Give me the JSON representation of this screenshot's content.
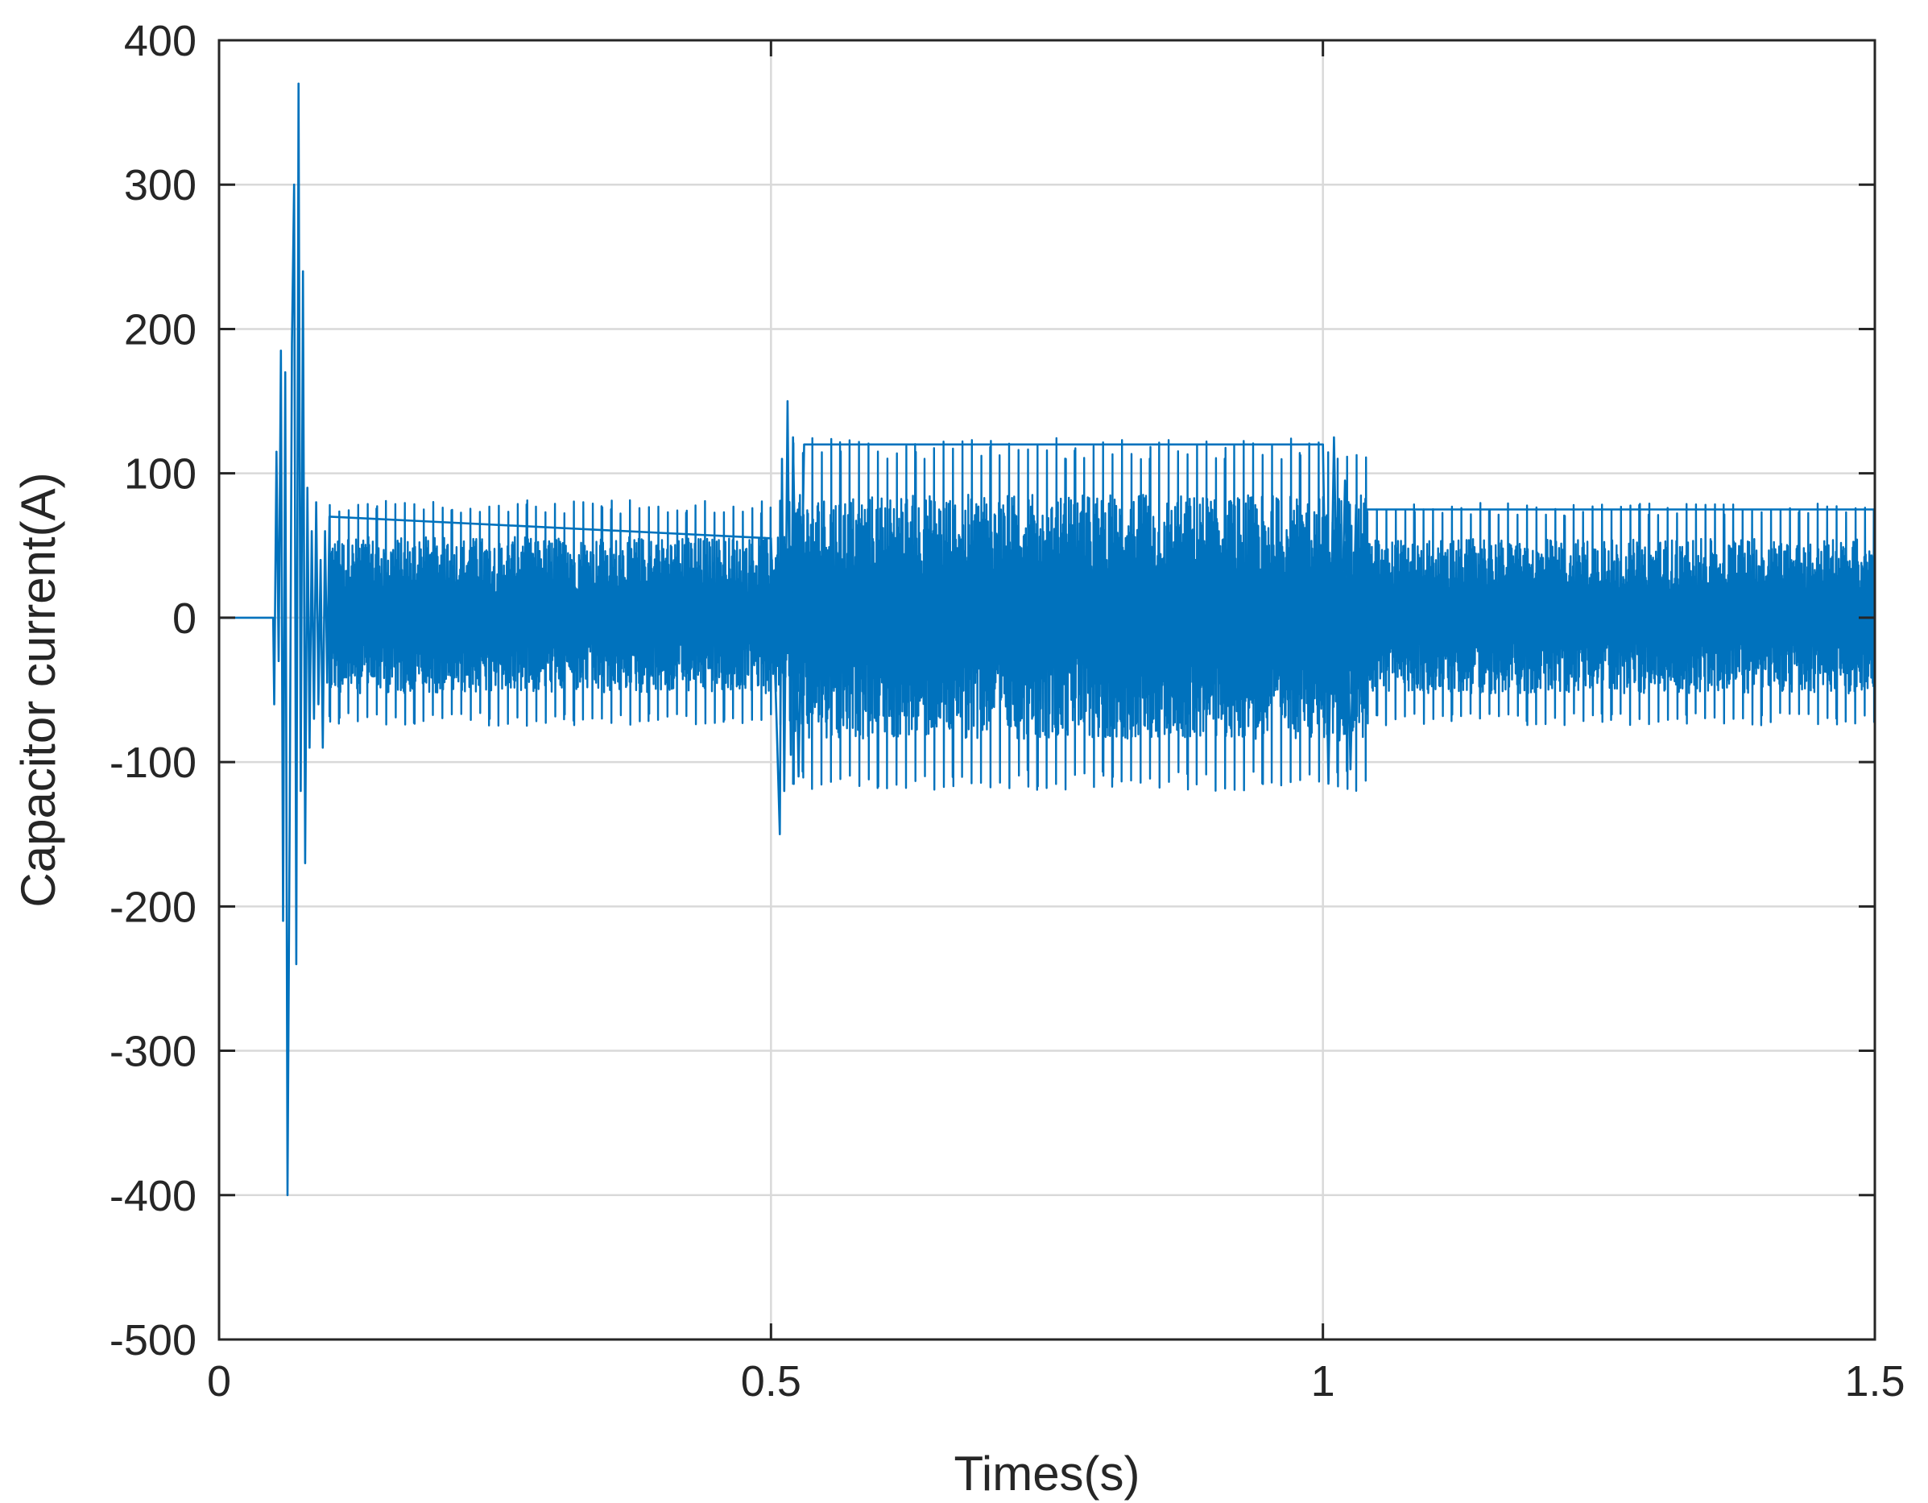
{
  "chart_data": {
    "type": "line",
    "xlabel": "Times(s)",
    "ylabel": "Capacitor current(A)",
    "xlim": [
      0,
      1.5
    ],
    "ylim": [
      -500,
      400
    ],
    "xticks": [
      {
        "value": 0,
        "label": "0"
      },
      {
        "value": 0.5,
        "label": "0.5"
      },
      {
        "value": 1,
        "label": "1"
      },
      {
        "value": 1.5,
        "label": "1.5"
      }
    ],
    "yticks": [
      {
        "value": 400,
        "label": "400"
      },
      {
        "value": 300,
        "label": "300"
      },
      {
        "value": 200,
        "label": "200"
      },
      {
        "value": 100,
        "label": "100"
      },
      {
        "value": 0,
        "label": "0"
      },
      {
        "value": -100,
        "label": "-100"
      },
      {
        "value": -200,
        "label": "-200"
      },
      {
        "value": -300,
        "label": "-300"
      },
      {
        "value": -400,
        "label": "-400"
      },
      {
        "value": -500,
        "label": "-500"
      }
    ],
    "grid": true,
    "series": [
      {
        "color": "#0072bd",
        "x": [
          0.0,
          0.049,
          0.05,
          0.052,
          0.054,
          0.056,
          0.058,
          0.06,
          0.062,
          0.064,
          0.066,
          0.068,
          0.07,
          0.072,
          0.074,
          0.076,
          0.078,
          0.08,
          0.082,
          0.084,
          0.086,
          0.088,
          0.09,
          0.092,
          0.094,
          0.096,
          0.098,
          0.1,
          0.5,
          0.505,
          0.508,
          0.51,
          0.512,
          0.515,
          0.518,
          0.52,
          0.525,
          0.53,
          0.9,
          1.0,
          1.005,
          1.01,
          1.015,
          1.02,
          1.025,
          1.03,
          1.035,
          1.04,
          1.5
        ],
        "y": [
          0,
          0,
          -60,
          115,
          -30,
          185,
          -210,
          170,
          -400,
          -140,
          190,
          300,
          -240,
          370,
          -120,
          240,
          -170,
          90,
          -90,
          60,
          -70,
          80,
          -60,
          40,
          -90,
          60,
          -45,
          70,
          55,
          -70,
          -150,
          110,
          -120,
          150,
          -95,
          125,
          -110,
          120,
          120,
          120,
          -115,
          125,
          -85,
          95,
          -105,
          78,
          -55,
          75,
          75
        ],
        "envelope": [
          {
            "x_start": 0.1,
            "x_end": 0.52,
            "min": -75,
            "max": 80,
            "period": 0.0085
          },
          {
            "x_start": 0.52,
            "x_end": 1.04,
            "min": -120,
            "max": 122,
            "period": 0.0085
          },
          {
            "x_start": 1.04,
            "x_end": 1.5,
            "min": -75,
            "max": 78,
            "period": 0.0085
          }
        ]
      }
    ]
  }
}
